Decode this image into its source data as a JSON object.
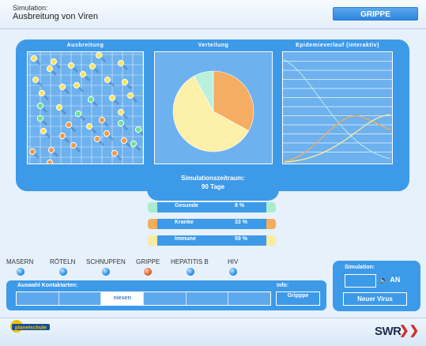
{
  "header": {
    "label": "Simulation:",
    "title": "Ausbreitung von Viren",
    "virus_badge": "GRIPPE"
  },
  "panels": {
    "ausbreitung_title": "Ausbreitung",
    "verteilung_title": "Verteilung",
    "epidemie_title": "Epidemieverlauf (interaktiv)"
  },
  "simulation": {
    "label": "Simulationszeitraum:",
    "value": "90 Tage"
  },
  "stats": [
    {
      "label": "Gesunde",
      "value": "8 %",
      "color": "#a9ecd1"
    },
    {
      "label": "Kranke",
      "value": "33 %",
      "color": "#f3ad5c"
    },
    {
      "label": "Immune",
      "value": "59 %",
      "color": "#fbeaa0"
    }
  ],
  "chart_data": {
    "type": "pie",
    "categories": [
      "Gesunde",
      "Kranke",
      "Immune"
    ],
    "values": [
      8,
      33,
      59
    ],
    "colors": [
      "#b9f1dc",
      "#f4ad62",
      "#fdf0a8"
    ]
  },
  "viruses": [
    {
      "label": "MASERN",
      "active": false
    },
    {
      "label": "RÖTELN",
      "active": false
    },
    {
      "label": "SCHNUPFEN",
      "active": false
    },
    {
      "label": "GRIPPE",
      "active": true
    },
    {
      "label": "HEPATITIS B",
      "active": false
    },
    {
      "label": "HIV",
      "active": false
    }
  ],
  "contacts": {
    "label": "Auswahl Kontaktarten:",
    "cells": [
      "",
      "",
      "niesen",
      "",
      "",
      ""
    ],
    "selected": 2
  },
  "info": {
    "label": "Info:",
    "value": "Gripppe"
  },
  "right_panel": {
    "label": "Simulation:",
    "sound_label": "AN",
    "new_virus": "Neuer Virus"
  },
  "footer": {
    "logo_text": "planetschule",
    "brand": "SWR"
  },
  "icons": {
    "sound": "speaker-icon",
    "brand_arrows": "double-chevron-icon"
  }
}
